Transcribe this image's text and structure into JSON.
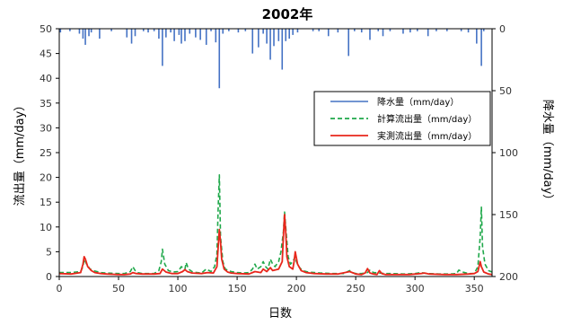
{
  "chart_data": {
    "type": "line",
    "title": "2002年",
    "xlabel": "日数",
    "ylabel_left": "流出量（mm/day）",
    "ylabel_right": "降水量（mm/day）",
    "xlim": [
      0,
      365
    ],
    "x_ticks": [
      0,
      50,
      100,
      150,
      200,
      250,
      300,
      350
    ],
    "ylim_left": [
      0,
      50
    ],
    "y_ticks_left": [
      0,
      5,
      10,
      15,
      20,
      25,
      30,
      35,
      40,
      45,
      50
    ],
    "ylim_right": [
      0,
      200
    ],
    "y_ticks_right": [
      0,
      50,
      100,
      150,
      200
    ],
    "right_axis_inverted": true,
    "grid": false,
    "legend_position": "right-center",
    "series": [
      {
        "name": "降水量（mm/day）",
        "kind": "bar",
        "axis": "right",
        "color": "#4472C4",
        "x": [
          1,
          9,
          17,
          20,
          22,
          25,
          27,
          34,
          44,
          57,
          61,
          64,
          71,
          75,
          80,
          84,
          87,
          90,
          94,
          97,
          101,
          103,
          106,
          110,
          115,
          119,
          124,
          128,
          132,
          135,
          138,
          143,
          151,
          157,
          163,
          168,
          172,
          175,
          178,
          181,
          185,
          188,
          191,
          194,
          197,
          201,
          214,
          219,
          227,
          235,
          244,
          249,
          255,
          262,
          269,
          273,
          279,
          290,
          296,
          302,
          311,
          318,
          327,
          339,
          345,
          352,
          356,
          358
        ],
        "values": [
          3,
          2,
          4,
          8,
          13,
          6,
          3,
          8,
          2,
          7,
          12,
          6,
          2,
          3,
          2,
          8,
          30,
          7,
          3,
          10,
          5,
          12,
          10,
          4,
          7,
          9,
          13,
          2,
          11,
          48,
          4,
          2,
          3,
          2,
          20,
          15,
          4,
          12,
          25,
          14,
          10,
          33,
          10,
          8,
          5,
          3,
          2,
          2,
          6,
          3,
          22,
          2,
          3,
          9,
          2,
          6,
          2,
          4,
          3,
          2,
          6,
          2,
          2,
          2,
          3,
          12,
          30,
          2
        ]
      },
      {
        "name": "計算流出量（mm/day）",
        "kind": "line",
        "axis": "left",
        "color": "#1FA84A",
        "dash": true,
        "x": [
          0,
          10,
          18,
          20,
          21,
          23,
          26,
          30,
          35,
          40,
          50,
          55,
          60,
          62,
          64,
          66,
          70,
          75,
          80,
          84,
          86,
          87,
          89,
          92,
          96,
          100,
          103,
          106,
          107,
          109,
          112,
          116,
          120,
          124,
          128,
          131,
          133,
          134,
          135,
          136,
          138,
          140,
          145,
          150,
          155,
          160,
          163,
          165,
          167,
          170,
          172,
          174,
          176,
          178,
          180,
          182,
          185,
          187,
          189,
          190,
          191,
          193,
          195,
          197,
          199,
          200,
          202,
          205,
          210,
          215,
          220,
          230,
          240,
          245,
          247,
          250,
          255,
          260,
          262,
          265,
          270,
          275,
          280,
          290,
          300,
          305,
          310,
          320,
          330,
          335,
          337,
          340,
          345,
          350,
          353,
          355,
          356,
          357,
          359,
          362,
          365
        ],
        "values": [
          0.8,
          0.8,
          1.0,
          2.0,
          3.5,
          2.5,
          1.5,
          1.1,
          0.8,
          0.7,
          0.6,
          0.6,
          1.0,
          2.0,
          1.2,
          0.8,
          0.6,
          0.6,
          0.6,
          1.2,
          3.0,
          5.5,
          2.5,
          1.2,
          0.9,
          1.0,
          2.0,
          1.5,
          2.8,
          1.5,
          1.0,
          0.8,
          0.7,
          1.5,
          1.0,
          2.0,
          4.5,
          14.0,
          20.5,
          8.0,
          3.0,
          1.5,
          1.0,
          0.8,
          0.7,
          0.8,
          1.5,
          2.5,
          1.5,
          2.0,
          3.0,
          2.0,
          1.5,
          3.5,
          2.5,
          2.0,
          3.0,
          5.0,
          9.0,
          13.0,
          10.0,
          4.0,
          2.5,
          3.0,
          4.0,
          3.0,
          2.0,
          1.2,
          0.9,
          0.8,
          0.7,
          0.6,
          0.6,
          1.2,
          0.8,
          0.6,
          0.6,
          0.8,
          1.3,
          0.8,
          0.7,
          0.6,
          0.6,
          0.5,
          0.6,
          0.8,
          0.6,
          0.5,
          0.5,
          0.6,
          1.3,
          0.9,
          0.6,
          0.6,
          2.0,
          8.0,
          14.0,
          6.0,
          2.5,
          1.2,
          0.9
        ]
      },
      {
        "name": "実測流出量（mm/day）",
        "kind": "line",
        "axis": "left",
        "color": "#E8261B",
        "dash": false,
        "x": [
          0,
          10,
          18,
          20,
          21,
          22,
          24,
          27,
          30,
          35,
          40,
          50,
          55,
          60,
          62,
          65,
          70,
          80,
          85,
          87,
          90,
          95,
          100,
          104,
          106,
          108,
          112,
          120,
          125,
          130,
          133,
          134,
          135,
          136,
          137,
          139,
          142,
          145,
          150,
          160,
          165,
          170,
          172,
          175,
          178,
          180,
          185,
          188,
          189,
          190,
          191,
          192,
          194,
          197,
          198,
          199,
          201,
          204,
          208,
          215,
          225,
          235,
          245,
          250,
          255,
          258,
          260,
          262,
          265,
          268,
          270,
          272,
          275,
          285,
          295,
          305,
          308,
          312,
          325,
          335,
          345,
          350,
          353,
          354,
          355,
          356,
          358,
          362,
          365
        ],
        "values": [
          0.6,
          0.5,
          0.8,
          2.5,
          4.0,
          3.5,
          2.0,
          1.2,
          0.8,
          0.6,
          0.5,
          0.4,
          0.4,
          0.5,
          0.8,
          0.6,
          0.5,
          0.5,
          0.6,
          1.5,
          0.9,
          0.6,
          0.6,
          1.0,
          1.4,
          1.0,
          0.7,
          0.6,
          0.8,
          0.7,
          2.0,
          6.0,
          9.5,
          7.0,
          3.5,
          1.5,
          0.9,
          0.7,
          0.6,
          0.5,
          1.0,
          0.8,
          1.5,
          1.0,
          1.8,
          1.2,
          1.5,
          3.0,
          8.0,
          12.5,
          9.0,
          4.0,
          2.0,
          1.5,
          3.0,
          5.0,
          2.5,
          1.2,
          0.8,
          0.6,
          0.5,
          0.5,
          1.0,
          0.5,
          0.4,
          0.7,
          1.6,
          0.7,
          0.5,
          0.4,
          1.2,
          0.6,
          0.4,
          0.4,
          0.4,
          0.6,
          0.7,
          0.5,
          0.4,
          0.4,
          0.5,
          0.6,
          1.0,
          2.0,
          3.0,
          2.0,
          0.9,
          0.5,
          0.4
        ]
      }
    ]
  }
}
